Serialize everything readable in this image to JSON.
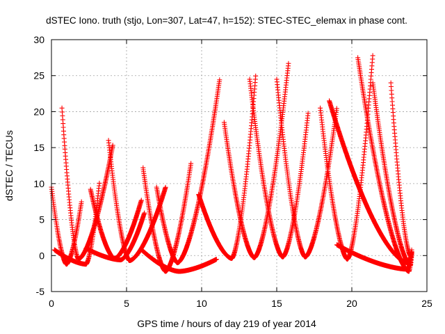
{
  "chart_data": {
    "type": "scatter",
    "title": "dSTEC Iono. truth (stjo, Lon=307, Lat=47, h=152): STEC-STEC_elemax in phase cont.",
    "xlabel": "GPS time / hours of day 219 of year 2014",
    "ylabel": "dSTEC  / TECUs",
    "xlim": [
      0,
      25
    ],
    "ylim": [
      -5,
      30
    ],
    "xticks": [
      "0",
      "5",
      "10",
      "15",
      "20",
      "25"
    ],
    "yticks": [
      "-5",
      "0",
      "5",
      "10",
      "15",
      "20",
      "25",
      "30"
    ],
    "xtick_values": [
      0,
      5,
      10,
      15,
      20,
      25
    ],
    "ytick_values": [
      -5,
      0,
      5,
      10,
      15,
      20,
      25,
      30
    ],
    "grid": true,
    "marker": "+",
    "color": "#ff0000",
    "arcs": [
      {
        "t_start": 0.0,
        "t_end": 2.0,
        "t_min": 1.0,
        "min": -1.2,
        "left_peak": 9.5,
        "right_peak": 7.5
      },
      {
        "t_start": 0.7,
        "t_end": 4.1,
        "t_min": 1.8,
        "min": -0.5,
        "left_peak": 20.5,
        "right_peak": 15.5
      },
      {
        "t_start": 0.2,
        "t_end": 3.2,
        "t_min": 2.3,
        "min": -1.2,
        "left_peak": 0.8,
        "right_peak": 10.3
      },
      {
        "t_start": 2.6,
        "t_end": 6.0,
        "t_min": 4.2,
        "min": -0.4,
        "left_peak": 9.2,
        "right_peak": 7.8
      },
      {
        "t_start": 3.8,
        "t_end": 7.6,
        "t_min": 5.2,
        "min": -0.7,
        "left_peak": 16.0,
        "right_peak": 9.5
      },
      {
        "t_start": 2.3,
        "t_end": 6.2,
        "t_min": 4.6,
        "min": -0.6,
        "left_peak": 1.0,
        "right_peak": 6.0
      },
      {
        "t_start": 6.1,
        "t_end": 9.3,
        "t_min": 7.6,
        "min": -2.2,
        "left_peak": 12.2,
        "right_peak": 13.0
      },
      {
        "t_start": 7.0,
        "t_end": 11.2,
        "t_min": 8.4,
        "min": -1.0,
        "left_peak": 9.5,
        "right_peak": 24.5
      },
      {
        "t_start": 9.8,
        "t_end": 13.6,
        "t_min": 12.0,
        "min": -0.4,
        "left_peak": 8.5,
        "right_peak": 25.0
      },
      {
        "t_start": 11.5,
        "t_end": 15.8,
        "t_min": 13.5,
        "min": -0.3,
        "left_peak": 18.5,
        "right_peak": 27.0
      },
      {
        "t_start": 13.2,
        "t_end": 17.1,
        "t_min": 15.4,
        "min": -0.2,
        "left_peak": 24.5,
        "right_peak": 20.0
      },
      {
        "t_start": 15.0,
        "t_end": 19.0,
        "t_min": 16.9,
        "min": -0.2,
        "left_peak": 24.5,
        "right_peak": 20.5
      },
      {
        "t_start": 17.9,
        "t_end": 21.4,
        "t_min": 19.7,
        "min": -0.5,
        "left_peak": 20.5,
        "right_peak": 28.0
      },
      {
        "t_start": 20.4,
        "t_end": 24.0,
        "t_min": 23.8,
        "min": -2.2,
        "left_peak": 27.5,
        "right_peak": 0.5
      },
      {
        "t_start": 21.4,
        "t_end": 24.0,
        "t_min": 23.9,
        "min": -1.4,
        "left_peak": 24.0,
        "right_peak": 0.5
      },
      {
        "t_start": 22.6,
        "t_end": 24.0,
        "t_min": 23.9,
        "min": 0.0,
        "left_peak": 24.0,
        "right_peak": 1.0
      },
      {
        "t_start": 18.5,
        "t_end": 24.0,
        "t_min": 23.7,
        "min": -1.0,
        "left_peak": 21.5,
        "right_peak": 0.5
      }
    ],
    "baseline_arcs": [
      {
        "t_start": 6.0,
        "t_end": 11.0,
        "t_min": 8.5,
        "min": -2.2,
        "left_peak": 0.8,
        "right_peak": -0.5
      },
      {
        "t_start": 19.0,
        "t_end": 24.0,
        "t_min": 23.7,
        "min": -1.9,
        "left_peak": 1.5,
        "right_peak": 0.2
      }
    ]
  }
}
